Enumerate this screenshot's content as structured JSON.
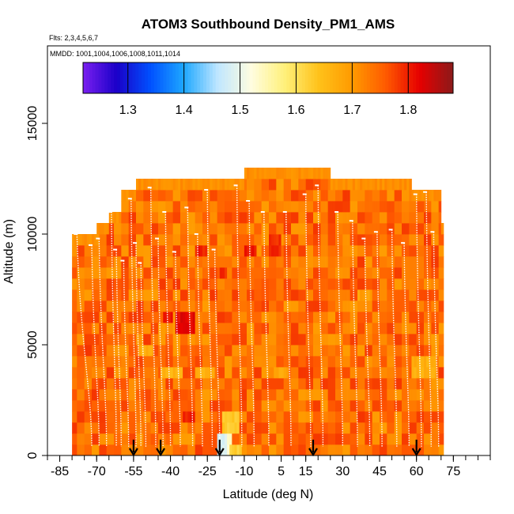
{
  "chart_data": {
    "type": "heatmap",
    "title": "ATOM3 Southbound Density_PM1_AMS",
    "flights_label": "Flts: 2,3,4,5,6,7",
    "mmdd_label": "MMDD: 1001,1004,1006,1008,1011,1014",
    "xlabel": "Latitude (deg N)",
    "ylabel": "Altitude (m)",
    "xlim": [
      -90,
      90
    ],
    "ylim": [
      0,
      18500
    ],
    "x_ticks": [
      -85,
      -70,
      -55,
      -40,
      -25,
      -10,
      5,
      15,
      30,
      45,
      60,
      75
    ],
    "x_minor_step": 5,
    "y_ticks": [
      0,
      5000,
      10000,
      15000
    ],
    "colorbar": {
      "range": [
        1.22,
        1.88
      ],
      "ticks": [
        "1.3",
        "1.4",
        "1.5",
        "1.6",
        "1.7",
        "1.8"
      ],
      "tick_values": [
        1.3,
        1.4,
        1.5,
        1.6,
        1.7,
        1.8
      ],
      "colors": [
        "#7a1ff0",
        "#1a00c8",
        "#0050ff",
        "#1ea8ff",
        "#bfe6ff",
        "#fffde0",
        "#fff07a",
        "#ffc21a",
        "#ff9a00",
        "#ff5a00",
        "#e60000",
        "#8b1a1a"
      ]
    },
    "altitude_bin_m": 500,
    "density_base": 1.74,
    "envelope": [
      {
        "lat_min": -80,
        "lat_max": -77,
        "alt_max": 10000
      },
      {
        "lat_min": -77,
        "lat_max": -70,
        "alt_max": 10000
      },
      {
        "lat_min": -70,
        "lat_max": -65,
        "alt_max": 10500
      },
      {
        "lat_min": -65,
        "lat_max": -60,
        "alt_max": 11000
      },
      {
        "lat_min": -60,
        "lat_max": -54,
        "alt_max": 12000
      },
      {
        "lat_min": -54,
        "lat_max": -47,
        "alt_max": 12500
      },
      {
        "lat_min": -47,
        "lat_max": -10,
        "alt_max": 12500
      },
      {
        "lat_min": -10,
        "lat_max": 25,
        "alt_max": 13000
      },
      {
        "lat_min": 25,
        "lat_max": 58,
        "alt_max": 12500
      },
      {
        "lat_min": 58,
        "lat_max": 70,
        "alt_max": 12000
      },
      {
        "lat_min": 70,
        "lat_max": 71,
        "alt_max": 10500
      }
    ],
    "anomalies": [
      {
        "lat_min": -21,
        "lat_max": -17,
        "alt_min": 0,
        "alt_max": 1000,
        "value": 1.48
      },
      {
        "lat_min": -17,
        "lat_max": -15,
        "alt_min": 0,
        "alt_max": 1000,
        "value": 1.53
      },
      {
        "lat_min": -19,
        "lat_max": -12,
        "alt_min": 1000,
        "alt_max": 2000,
        "value": 1.63
      },
      {
        "lat_min": -16,
        "lat_max": -11,
        "alt_min": 0,
        "alt_max": 500,
        "value": 1.62
      },
      {
        "lat_min": -38,
        "lat_max": -30,
        "alt_min": 5500,
        "alt_max": 6500,
        "value": 1.82
      },
      {
        "lat_min": -35,
        "lat_max": -30,
        "alt_min": 1500,
        "alt_max": 2000,
        "value": 1.8
      },
      {
        "lat_min": -30,
        "lat_max": -25,
        "alt_min": 9000,
        "alt_max": 9500,
        "value": 1.8
      },
      {
        "lat_min": -43,
        "lat_max": -39,
        "alt_min": 6000,
        "alt_max": 6500,
        "value": 1.8
      },
      {
        "lat_min": -20,
        "lat_max": -17,
        "alt_min": 8000,
        "alt_max": 8500,
        "value": 1.79
      },
      {
        "lat_min": -44,
        "lat_max": -35,
        "alt_min": 3500,
        "alt_max": 4000,
        "value": 1.66
      },
      {
        "lat_min": -30,
        "lat_max": -22,
        "alt_min": 3500,
        "alt_max": 4000,
        "value": 1.67
      },
      {
        "lat_min": -53,
        "lat_max": -47,
        "alt_min": 4500,
        "alt_max": 5000,
        "value": 1.67
      },
      {
        "lat_min": 2,
        "lat_max": 8,
        "alt_min": 3500,
        "alt_max": 4000,
        "value": 1.68
      },
      {
        "lat_min": 58,
        "lat_max": 68,
        "alt_min": 3500,
        "alt_max": 4500,
        "value": 1.67
      },
      {
        "lat_min": 36,
        "lat_max": 42,
        "alt_min": 7000,
        "alt_max": 7500,
        "value": 1.69
      },
      {
        "lat_min": 0,
        "lat_max": 5,
        "alt_min": 9000,
        "alt_max": 10000,
        "value": 1.79
      },
      {
        "lat_min": -10,
        "lat_max": -5,
        "alt_min": 9000,
        "alt_max": 9500,
        "value": 1.8
      }
    ],
    "profiles": [
      {
        "lat_top": -78,
        "lat_bottom": -72,
        "alt_top": 10000
      },
      {
        "lat_top": -72,
        "lat_bottom": -69,
        "alt_top": 9500
      },
      {
        "lat_top": -69,
        "lat_bottom": -66,
        "alt_top": 9800
      },
      {
        "lat_top": -64,
        "lat_bottom": -62,
        "alt_top": 11000
      },
      {
        "lat_top": -62,
        "lat_bottom": -60,
        "alt_top": 9300
      },
      {
        "lat_top": -59,
        "lat_bottom": -57,
        "alt_top": 8800
      },
      {
        "lat_top": -56,
        "lat_bottom": -54,
        "alt_top": 11600
      },
      {
        "lat_top": -54,
        "lat_bottom": -52,
        "alt_top": 9600
      },
      {
        "lat_top": -52,
        "lat_bottom": -50,
        "alt_top": 8700
      },
      {
        "lat_top": -48,
        "lat_bottom": -46,
        "alt_top": 12100
      },
      {
        "lat_top": -45,
        "lat_bottom": -43,
        "alt_top": 9800
      },
      {
        "lat_top": -42,
        "lat_bottom": -40,
        "alt_top": 11000
      },
      {
        "lat_top": -38,
        "lat_bottom": -36,
        "alt_top": 9200
      },
      {
        "lat_top": -33,
        "lat_bottom": -31,
        "alt_top": 11200
      },
      {
        "lat_top": -29,
        "lat_bottom": -27,
        "alt_top": 10000
      },
      {
        "lat_top": -25,
        "lat_bottom": -23,
        "alt_top": 12000
      },
      {
        "lat_top": -22,
        "lat_bottom": -20,
        "alt_top": 9300
      },
      {
        "lat_top": -13,
        "lat_bottom": -11,
        "alt_top": 12200
      },
      {
        "lat_top": -8,
        "lat_bottom": -6,
        "alt_top": 11500
      },
      {
        "lat_top": -2,
        "lat_bottom": 0,
        "alt_top": 11000
      },
      {
        "lat_top": 7,
        "lat_bottom": 9,
        "alt_top": 11000
      },
      {
        "lat_top": 15,
        "lat_bottom": 17,
        "alt_top": 11800
      },
      {
        "lat_top": 20,
        "lat_bottom": 22,
        "alt_top": 12200
      },
      {
        "lat_top": 28,
        "lat_bottom": 30,
        "alt_top": 11000
      },
      {
        "lat_top": 34,
        "lat_bottom": 36,
        "alt_top": 10600
      },
      {
        "lat_top": 39,
        "lat_bottom": 41,
        "alt_top": 9800
      },
      {
        "lat_top": 44,
        "lat_bottom": 46,
        "alt_top": 10100
      },
      {
        "lat_top": 50,
        "lat_bottom": 52,
        "alt_top": 10200
      },
      {
        "lat_top": 55,
        "lat_bottom": 57,
        "alt_top": 9600
      },
      {
        "lat_top": 60,
        "lat_bottom": 62,
        "alt_top": 11800
      },
      {
        "lat_top": 64,
        "lat_bottom": 66,
        "alt_top": 11900
      },
      {
        "lat_top": 67,
        "lat_bottom": 69,
        "alt_top": 10100
      }
    ],
    "arrows_lat": [
      -55,
      -44,
      -20,
      18,
      60
    ]
  }
}
